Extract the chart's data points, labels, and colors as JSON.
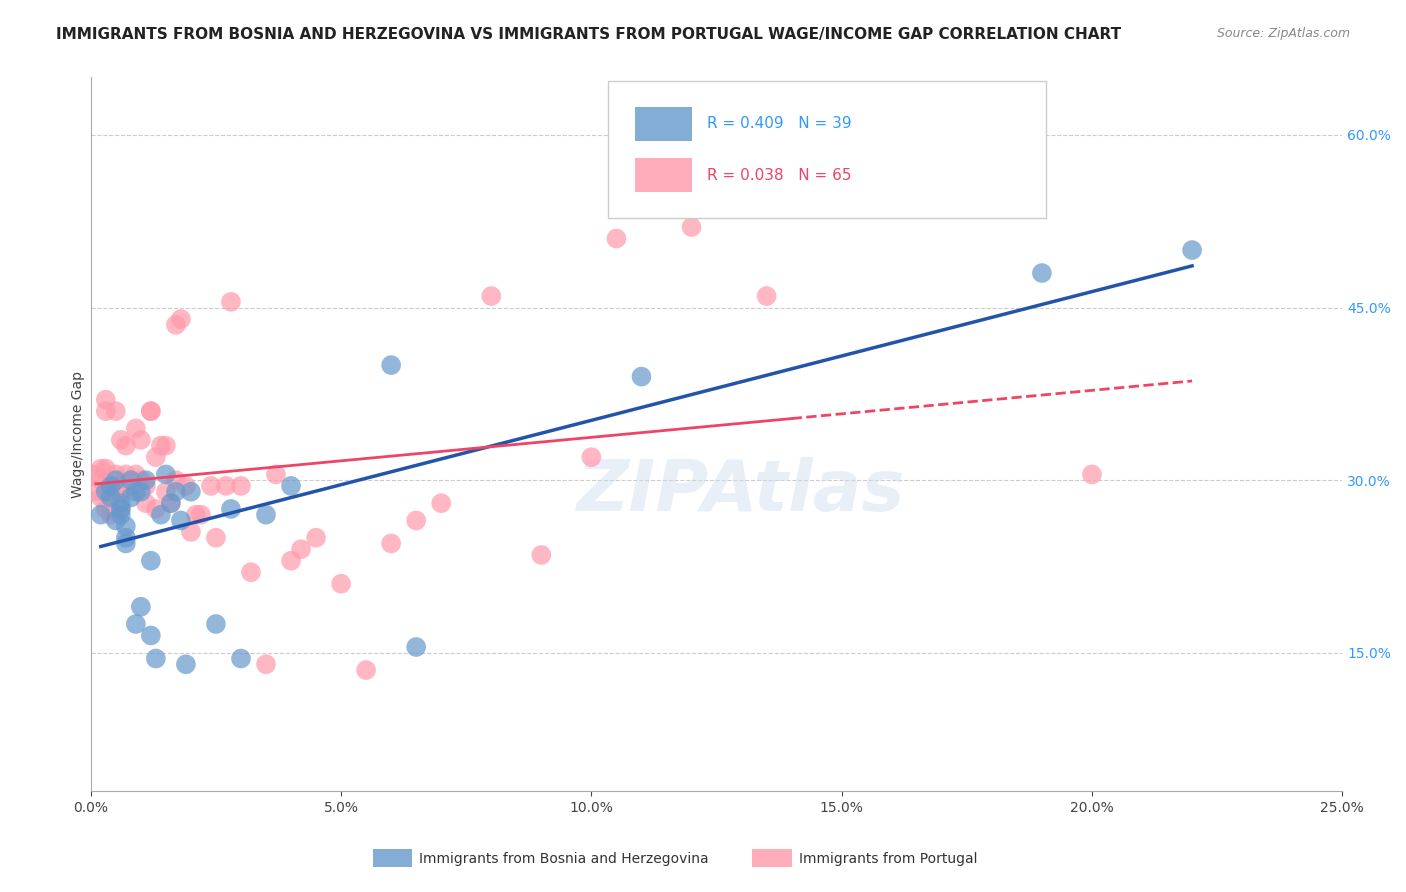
{
  "title": "IMMIGRANTS FROM BOSNIA AND HERZEGOVINA VS IMMIGRANTS FROM PORTUGAL WAGE/INCOME GAP CORRELATION CHART",
  "source": "Source: ZipAtlas.com",
  "xlabel_bottom": "Immigrants from Bosnia and Herzegovina",
  "xlabel_bottom2": "Immigrants from Portugal",
  "ylabel": "Wage/Income Gap",
  "xlim": [
    0.0,
    0.25
  ],
  "ylim": [
    0.03,
    0.65
  ],
  "xticks": [
    0.0,
    0.05,
    0.1,
    0.15,
    0.2,
    0.25
  ],
  "xtick_labels": [
    "0.0%",
    "5.0%",
    "10.0%",
    "15.0%",
    "20.0%",
    "25.0%"
  ],
  "yticks": [
    0.15,
    0.3,
    0.45,
    0.6
  ],
  "ytick_labels": [
    "15.0%",
    "30.0%",
    "45.0%",
    "60.0%"
  ],
  "blue_R": 0.409,
  "blue_N": 39,
  "pink_R": 0.038,
  "pink_N": 65,
  "blue_color": "#6699CC",
  "pink_color": "#FF99AA",
  "blue_line_color": "#2255AA",
  "pink_line_color": "#EE4466",
  "watermark": "ZIPAtlas",
  "blue_scatter_x": [
    0.002,
    0.003,
    0.004,
    0.004,
    0.005,
    0.005,
    0.006,
    0.006,
    0.006,
    0.007,
    0.007,
    0.007,
    0.008,
    0.008,
    0.009,
    0.009,
    0.01,
    0.01,
    0.011,
    0.012,
    0.012,
    0.013,
    0.014,
    0.015,
    0.016,
    0.017,
    0.018,
    0.019,
    0.02,
    0.025,
    0.028,
    0.03,
    0.035,
    0.04,
    0.06,
    0.065,
    0.11,
    0.19,
    0.22
  ],
  "blue_scatter_y": [
    0.27,
    0.29,
    0.285,
    0.295,
    0.3,
    0.265,
    0.27,
    0.275,
    0.28,
    0.245,
    0.25,
    0.26,
    0.3,
    0.285,
    0.29,
    0.175,
    0.29,
    0.19,
    0.3,
    0.23,
    0.165,
    0.145,
    0.27,
    0.305,
    0.28,
    0.29,
    0.265,
    0.14,
    0.29,
    0.175,
    0.275,
    0.145,
    0.27,
    0.295,
    0.4,
    0.155,
    0.39,
    0.48,
    0.5
  ],
  "pink_scatter_x": [
    0.001,
    0.001,
    0.002,
    0.002,
    0.002,
    0.003,
    0.003,
    0.003,
    0.003,
    0.004,
    0.004,
    0.004,
    0.005,
    0.005,
    0.005,
    0.006,
    0.006,
    0.006,
    0.007,
    0.007,
    0.008,
    0.009,
    0.009,
    0.01,
    0.01,
    0.011,
    0.011,
    0.012,
    0.012,
    0.013,
    0.013,
    0.014,
    0.015,
    0.015,
    0.016,
    0.017,
    0.017,
    0.018,
    0.019,
    0.02,
    0.021,
    0.022,
    0.024,
    0.025,
    0.027,
    0.028,
    0.03,
    0.032,
    0.035,
    0.037,
    0.04,
    0.042,
    0.045,
    0.05,
    0.055,
    0.06,
    0.065,
    0.07,
    0.08,
    0.09,
    0.1,
    0.105,
    0.12,
    0.135,
    0.2
  ],
  "pink_scatter_y": [
    0.29,
    0.305,
    0.3,
    0.285,
    0.31,
    0.275,
    0.31,
    0.36,
    0.37,
    0.27,
    0.285,
    0.295,
    0.295,
    0.305,
    0.36,
    0.275,
    0.29,
    0.335,
    0.305,
    0.33,
    0.295,
    0.305,
    0.345,
    0.3,
    0.335,
    0.28,
    0.295,
    0.36,
    0.36,
    0.275,
    0.32,
    0.33,
    0.29,
    0.33,
    0.28,
    0.3,
    0.435,
    0.44,
    0.295,
    0.255,
    0.27,
    0.27,
    0.295,
    0.25,
    0.295,
    0.455,
    0.295,
    0.22,
    0.14,
    0.305,
    0.23,
    0.24,
    0.25,
    0.21,
    0.135,
    0.245,
    0.265,
    0.28,
    0.46,
    0.235,
    0.32,
    0.51,
    0.52,
    0.46,
    0.305
  ],
  "grid_color": "#CCCCCC",
  "background_color": "#FFFFFF",
  "title_fontsize": 11,
  "axis_label_fontsize": 10,
  "tick_fontsize": 10,
  "legend_fontsize": 11
}
